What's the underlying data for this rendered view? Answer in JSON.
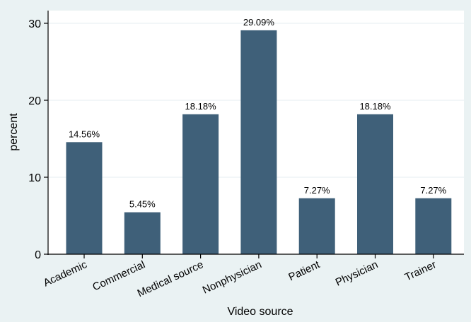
{
  "chart_data": {
    "type": "bar",
    "categories": [
      "Academic",
      "Commercial",
      "Medical source",
      "Nonphysician",
      "Patient",
      "Physician",
      "Trainer"
    ],
    "values": [
      14.56,
      5.45,
      18.18,
      29.09,
      7.27,
      18.18,
      7.27
    ],
    "value_labels": [
      "14.56%",
      "5.45%",
      "18.18%",
      "29.09%",
      "7.27%",
      "18.18%",
      "7.27%"
    ],
    "title": "",
    "xlabel": "Video source",
    "ylabel": "percent",
    "ylim": [
      0,
      30
    ],
    "yticks": [
      0,
      10,
      20,
      30
    ],
    "grid": true,
    "colors": {
      "bar": "#3f6079",
      "plot_background": "#ffffff",
      "outer_background": "#eaf2f3",
      "grid": "#e6eef0",
      "axis": "#000000"
    }
  }
}
